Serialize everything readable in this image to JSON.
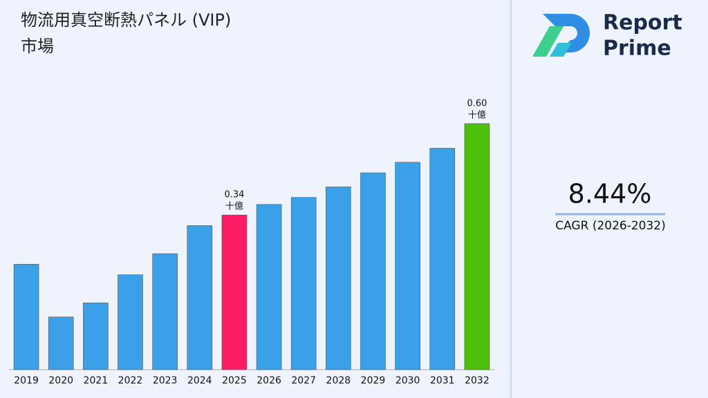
{
  "chart_data": {
    "type": "bar",
    "title": "物流用真空断熱パネル (VIP) 市場",
    "categories": [
      "2019",
      "2020",
      "2021",
      "2022",
      "2023",
      "2024",
      "2025",
      "2026",
      "2027",
      "2028",
      "2029",
      "2030",
      "2031",
      "2032"
    ],
    "values": [
      0.2,
      0.05,
      0.09,
      0.17,
      0.23,
      0.31,
      0.34,
      0.37,
      0.39,
      0.42,
      0.46,
      0.49,
      0.53,
      0.6
    ],
    "value_labels": [
      null,
      null,
      null,
      null,
      null,
      null,
      "0.34",
      null,
      null,
      null,
      null,
      null,
      null,
      "0.60"
    ],
    "unit_label": "十億",
    "colors": [
      "#3aa0e8",
      "#3aa0e8",
      "#3aa0e8",
      "#3aa0e8",
      "#3aa0e8",
      "#3aa0e8",
      "#fc1c64",
      "#3aa0e8",
      "#3aa0e8",
      "#3aa0e8",
      "#3aa0e8",
      "#3aa0e8",
      "#3aa0e8",
      "#4cc00c"
    ],
    "ylim": [
      -0.1,
      0.7
    ]
  },
  "brand": {
    "line1": "Report",
    "line2": "Prime"
  },
  "stat": {
    "value": "8.44%",
    "label": "CAGR (2026-2032)"
  }
}
